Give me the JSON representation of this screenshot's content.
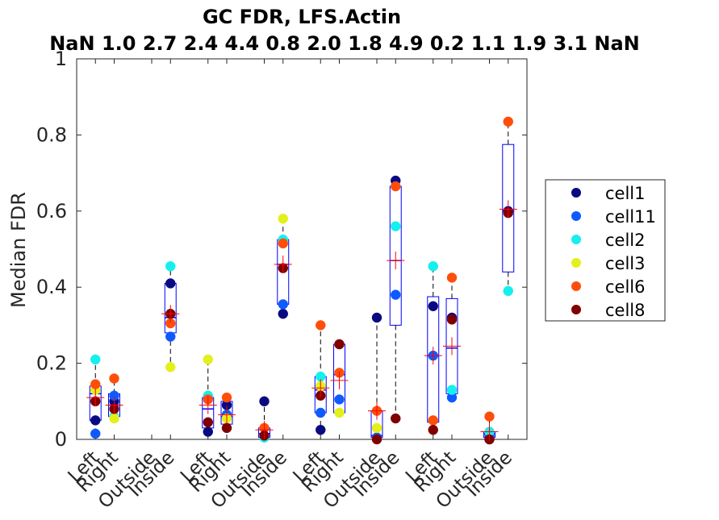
{
  "chart_data": {
    "type": "box",
    "title": "GC FDR, LFS.Actin",
    "subtitle": "NaN 1.0 2.7 2.4 4.4 0.8 2.0 1.8 4.9 0.2 1.1 1.9 3.1 NaN",
    "ylabel": "Median FDR",
    "xlabel": "",
    "ylim": [
      0,
      1
    ],
    "yticks": [
      0,
      0.2,
      0.4,
      0.6,
      0.8,
      1
    ],
    "ytick_labels": [
      "0",
      "0.2",
      "0.4",
      "0.6",
      "0.8",
      "1"
    ],
    "legend_position": "right",
    "categories": [
      "Left",
      "Right",
      "Outside",
      "Inside",
      "Left",
      "Right",
      "Outside",
      "Inside",
      "Left",
      "Right",
      "Outside",
      "Inside",
      "Left",
      "Right",
      "Outside",
      "Inside"
    ],
    "group_positions": [
      1,
      2,
      4,
      5,
      7,
      8,
      10,
      11,
      13,
      14,
      16,
      17,
      19,
      20,
      22,
      23
    ],
    "xlim": [
      0,
      24
    ],
    "series": [
      {
        "name": "cell1",
        "color": "#0a0a80",
        "values": [
          0.05,
          0.1,
          null,
          0.41,
          0.02,
          0.09,
          0.1,
          0.33,
          0.025,
          0.25,
          0.32,
          0.68,
          0.35,
          0.32,
          0.0,
          0.6
        ]
      },
      {
        "name": "cell11",
        "color": "#0f5aff",
        "values": [
          0.015,
          0.115,
          null,
          0.27,
          null,
          0.065,
          0.005,
          0.355,
          0.07,
          0.105,
          0.005,
          0.38,
          0.22,
          0.11,
          0.01,
          null
        ]
      },
      {
        "name": "cell2",
        "color": "#14f0ee",
        "values": [
          0.21,
          0.06,
          null,
          0.455,
          0.115,
          null,
          0.005,
          0.525,
          0.165,
          null,
          null,
          0.56,
          0.455,
          0.13,
          0.02,
          0.39
        ]
      },
      {
        "name": "cell3",
        "color": "#e4f01a",
        "values": [
          0.13,
          0.055,
          null,
          0.19,
          0.21,
          0.055,
          null,
          0.58,
          0.14,
          0.07,
          0.03,
          null,
          null,
          null,
          null,
          null
        ]
      },
      {
        "name": "cell6",
        "color": "#ff4e0a",
        "values": [
          0.145,
          0.16,
          null,
          0.305,
          0.105,
          0.11,
          0.03,
          0.515,
          0.3,
          0.175,
          0.075,
          0.665,
          0.05,
          0.425,
          0.06,
          0.835
        ]
      },
      {
        "name": "cell8",
        "color": "#800000",
        "values": [
          0.1,
          0.08,
          null,
          0.33,
          0.045,
          0.03,
          0.01,
          0.45,
          0.115,
          0.25,
          0.0,
          0.055,
          0.025,
          0.315,
          0.0,
          0.595
        ]
      }
    ],
    "boxes": [
      {
        "q1": 0.05,
        "median": 0.12,
        "q3": 0.14,
        "whisker_low": 0.015,
        "whisker_high": 0.21,
        "mean": 0.11
      },
      {
        "q1": 0.06,
        "median": 0.09,
        "q3": 0.12,
        "whisker_low": 0.055,
        "whisker_high": 0.16,
        "mean": 0.09
      },
      null,
      {
        "q1": 0.28,
        "median": 0.32,
        "q3": 0.41,
        "whisker_low": 0.19,
        "whisker_high": 0.455,
        "mean": 0.33
      },
      {
        "q1": 0.03,
        "median": 0.08,
        "q3": 0.11,
        "whisker_low": 0.02,
        "whisker_high": 0.21,
        "mean": 0.09
      },
      {
        "q1": 0.04,
        "median": 0.06,
        "q3": 0.1,
        "whisker_low": 0.03,
        "whisker_high": 0.11,
        "mean": 0.065
      },
      {
        "q1": 0.005,
        "median": 0.015,
        "q3": 0.03,
        "whisker_low": 0.005,
        "whisker_high": 0.1,
        "mean": 0.025
      },
      {
        "q1": 0.355,
        "median": 0.46,
        "q3": 0.525,
        "whisker_low": 0.33,
        "whisker_high": 0.58,
        "mean": 0.46
      },
      {
        "q1": 0.07,
        "median": 0.13,
        "q3": 0.165,
        "whisker_low": 0.025,
        "whisker_high": 0.3,
        "mean": 0.135
      },
      {
        "q1": 0.07,
        "median": 0.17,
        "q3": 0.25,
        "whisker_low": 0.07,
        "whisker_high": 0.25,
        "mean": 0.155
      },
      {
        "q1": 0.005,
        "median": 0.01,
        "q3": 0.075,
        "whisker_low": 0.0,
        "whisker_high": 0.32,
        "mean": 0.075
      },
      {
        "q1": 0.3,
        "median": 0.47,
        "q3": 0.665,
        "whisker_low": 0.055,
        "whisker_high": 0.68,
        "mean": 0.47
      },
      {
        "q1": 0.045,
        "median": 0.22,
        "q3": 0.375,
        "whisker_low": 0.025,
        "whisker_high": 0.455,
        "mean": 0.22
      },
      {
        "q1": 0.12,
        "median": 0.24,
        "q3": 0.37,
        "whisker_low": 0.11,
        "whisker_high": 0.425,
        "mean": 0.245
      },
      {
        "q1": 0.005,
        "median": 0.015,
        "q3": 0.02,
        "whisker_low": 0.0,
        "whisker_high": 0.06,
        "mean": 0.02
      },
      {
        "q1": 0.44,
        "median": 0.6,
        "q3": 0.775,
        "whisker_low": 0.39,
        "whisker_high": 0.835,
        "mean": 0.605
      }
    ],
    "box_color": "#0000ff",
    "mean_marker_color": "#ff0000",
    "whisker_color": "#000000",
    "grid": false
  }
}
